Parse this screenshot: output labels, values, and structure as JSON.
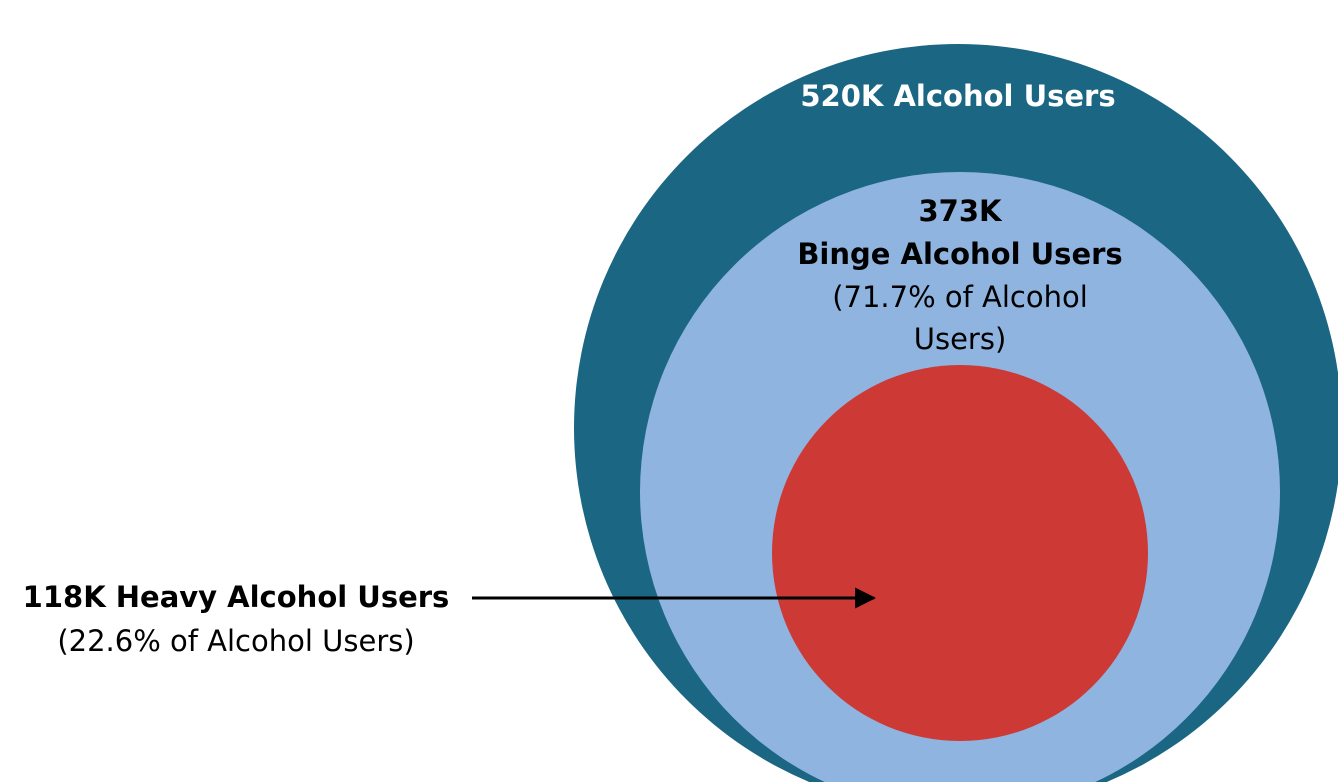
{
  "outer": {
    "label": "520K Alcohol Users"
  },
  "middle": {
    "lines": [
      "373K",
      "Binge Alcohol Users",
      "(71.7% of Alcohol",
      "Users)"
    ]
  },
  "inner": {
    "label": "118K Heavy Alcohol Users",
    "note": "(22.6% of Alcohol Users)"
  }
}
